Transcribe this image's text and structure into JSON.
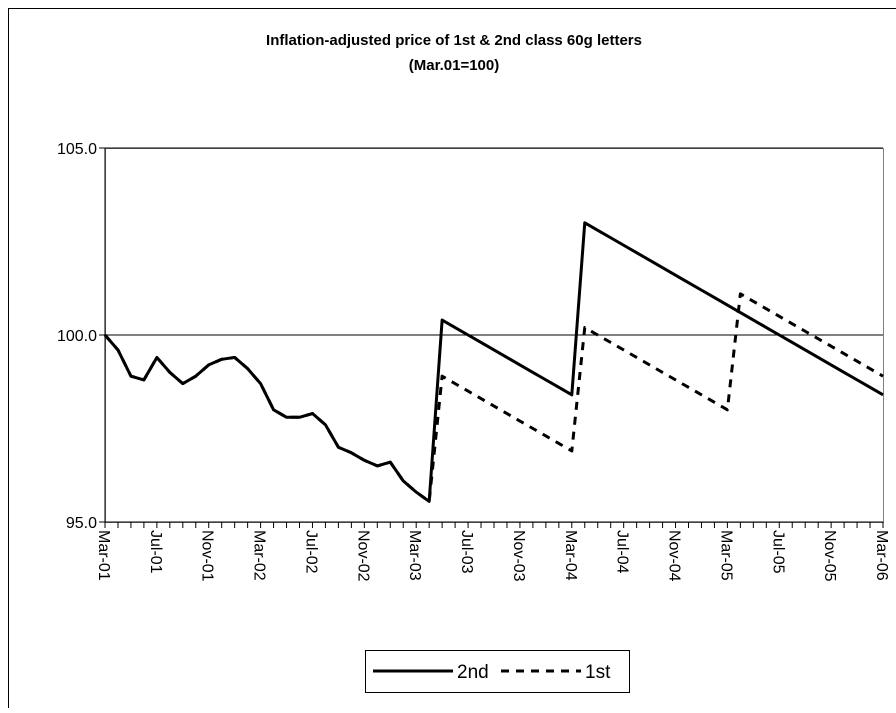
{
  "chart_data": {
    "type": "line",
    "title": "Inflation-adjusted price of 1st & 2nd class 60g letters",
    "subtitle": "(Mar.01=100)",
    "categories": [
      "Mar-01",
      null,
      null,
      null,
      "Jul-01",
      null,
      null,
      null,
      "Nov-01",
      null,
      null,
      null,
      "Mar-02",
      null,
      null,
      null,
      "Jul-02",
      null,
      null,
      null,
      "Nov-02",
      null,
      null,
      null,
      "Mar-03",
      null,
      null,
      null,
      "Jul-03",
      null,
      null,
      null,
      "Nov-03",
      null,
      null,
      null,
      "Mar-04",
      null,
      null,
      null,
      "Jul-04",
      null,
      null,
      null,
      "Nov-04",
      null,
      null,
      null,
      "Mar-05",
      null,
      null,
      null,
      "Jul-05",
      null,
      null,
      null,
      "Nov-05",
      null,
      null,
      null,
      "Mar-06"
    ],
    "series": [
      {
        "name": "2nd",
        "color": "#000000",
        "line_style": "solid",
        "values": [
          100.0,
          99.6,
          98.9,
          98.8,
          99.4,
          99.0,
          98.7,
          98.9,
          99.2,
          99.35,
          99.4,
          99.1,
          98.7,
          98.0,
          97.8,
          97.8,
          97.9,
          97.6,
          97.0,
          96.85,
          96.65,
          96.5,
          96.6,
          96.1,
          95.8,
          95.55,
          100.4,
          100.2,
          100.0,
          99.8,
          99.6,
          99.4,
          99.2,
          99.0,
          98.8,
          98.6,
          98.4,
          103.0,
          102.8,
          102.6,
          102.4,
          102.2,
          102.0,
          101.8,
          101.6,
          101.4,
          101.2,
          101.0,
          100.8,
          100.6,
          100.4,
          100.2,
          100.0,
          99.8,
          99.6,
          99.4,
          99.2,
          99.0,
          98.8,
          98.6,
          98.4
        ]
      },
      {
        "name": "1st",
        "color": "#000000",
        "line_style": "dashed",
        "values": [
          100.0,
          99.6,
          98.9,
          98.8,
          99.4,
          99.0,
          98.7,
          98.9,
          99.2,
          99.35,
          99.4,
          99.1,
          98.7,
          98.0,
          97.8,
          97.8,
          97.9,
          97.6,
          97.0,
          96.85,
          96.65,
          96.5,
          96.6,
          96.1,
          95.8,
          95.55,
          98.9,
          98.7,
          98.5,
          98.3,
          98.1,
          97.9,
          97.7,
          97.5,
          97.3,
          97.1,
          96.9,
          100.2,
          100.0,
          99.8,
          99.6,
          99.4,
          99.2,
          99.0,
          98.8,
          98.6,
          98.4,
          98.2,
          98.0,
          101.1,
          100.9,
          100.7,
          100.5,
          100.3,
          100.1,
          99.9,
          99.7,
          99.5,
          99.3,
          99.1,
          98.9
        ]
      }
    ],
    "ylim": [
      95,
      105
    ],
    "yticks": [
      {
        "value": 95,
        "label": "95.0"
      },
      {
        "value": 100,
        "label": "100.0"
      },
      {
        "value": 105,
        "label": "105.0"
      }
    ],
    "grid": true,
    "legend": "bottom"
  }
}
